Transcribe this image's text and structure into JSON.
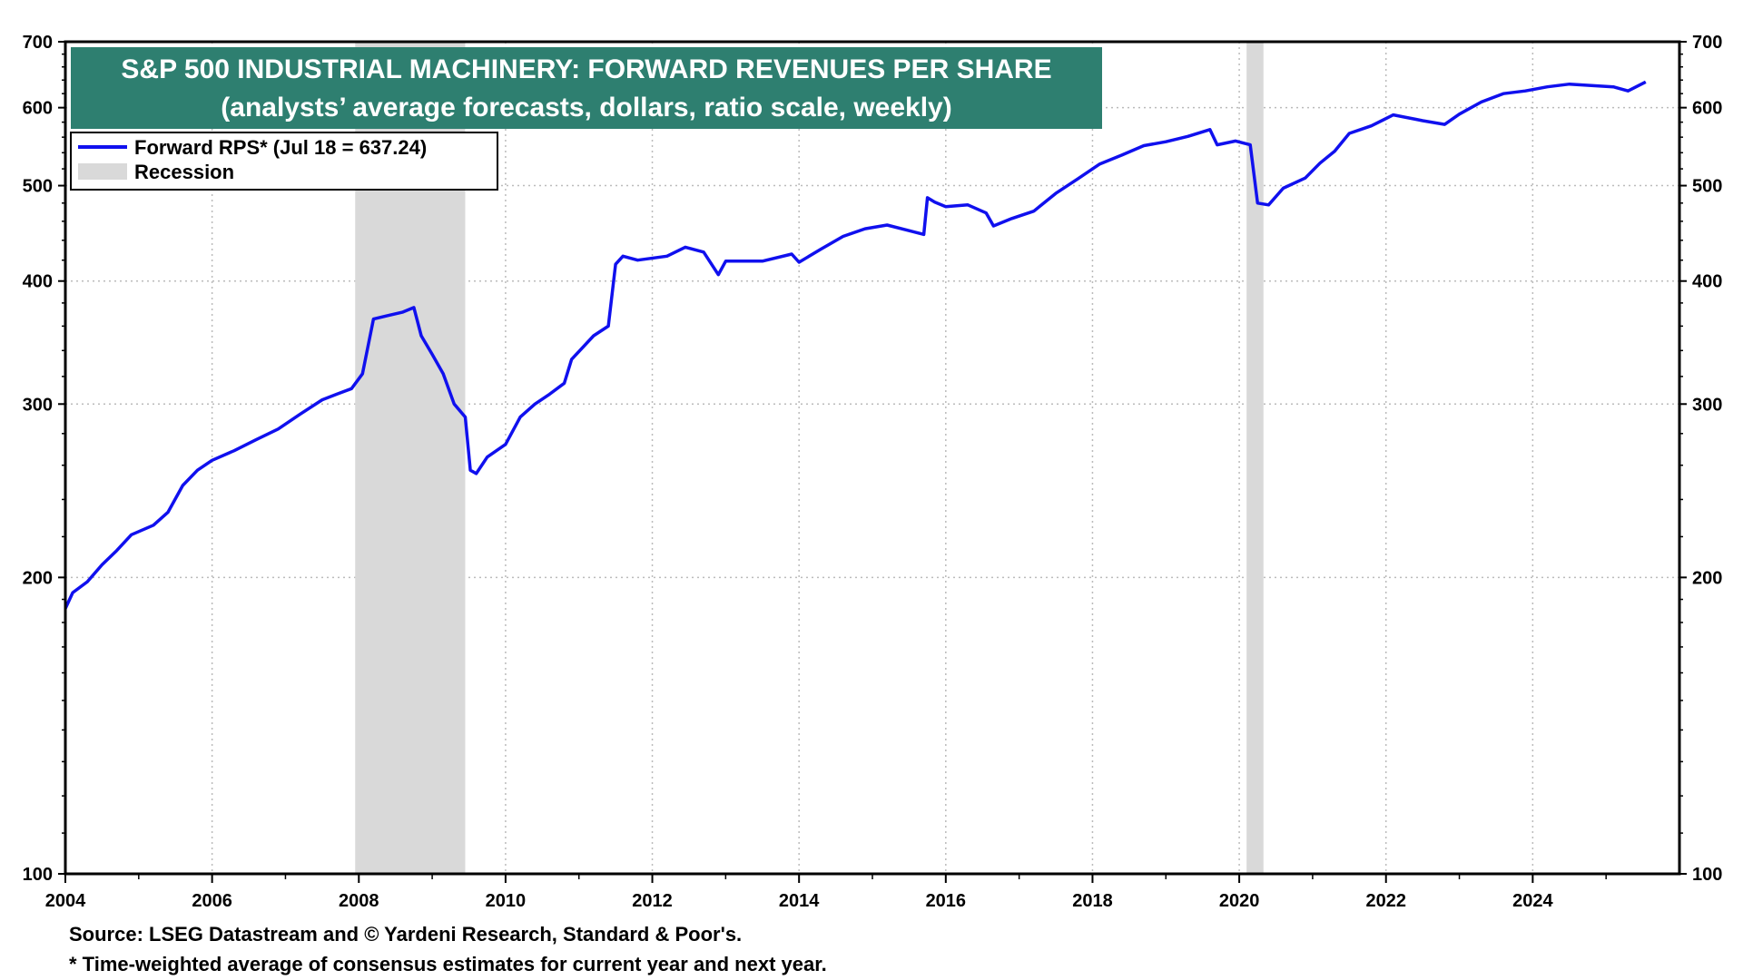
{
  "chart_data": {
    "type": "line",
    "title": "S&P 500 INDUSTRIAL MACHINERY: FORWARD REVENUES PER SHARE",
    "subtitle": "(analysts’ average forecasts, dollars, ratio scale, weekly)",
    "y_scale": "log",
    "ylim": [
      100,
      700
    ],
    "xlim": [
      2004.0,
      2026.0
    ],
    "y_ticks": [
      "100",
      "200",
      "300",
      "400",
      "500",
      "600",
      "700"
    ],
    "x_ticks": [
      "2004",
      "2006",
      "2008",
      "2010",
      "2012",
      "2014",
      "2016",
      "2018",
      "2020",
      "2022",
      "2024"
    ],
    "grid": true,
    "legend_position": "top-left",
    "colors": {
      "series": "#1010ee",
      "recession": "#d9d9d9",
      "title_bg": "#2e7f70",
      "axis": "#000000",
      "grid": "#bbbbbb"
    },
    "legend": [
      {
        "label": "Forward RPS* (Jul 18 = 637.24)",
        "kind": "line"
      },
      {
        "label": "Recession",
        "kind": "band"
      }
    ],
    "recessions": [
      {
        "start": 2007.95,
        "end": 2009.45
      },
      {
        "start": 2020.1,
        "end": 2020.33
      }
    ],
    "series": [
      {
        "x": [
          2004.0,
          2004.1,
          2004.3,
          2004.5,
          2004.7,
          2004.9,
          2005.2,
          2005.4,
          2005.6,
          2005.8,
          2006.0,
          2006.3,
          2006.6,
          2006.9,
          2007.2,
          2007.5,
          2007.7,
          2007.9,
          2008.05,
          2008.2,
          2008.4,
          2008.6,
          2008.75,
          2008.85,
          2009.0,
          2009.15,
          2009.3,
          2009.45,
          2009.52,
          2009.6,
          2009.75,
          2010.0,
          2010.2,
          2010.4,
          2010.6,
          2010.8,
          2010.9,
          2011.2,
          2011.4,
          2011.5,
          2011.6,
          2011.8,
          2012.2,
          2012.45,
          2012.7,
          2012.9,
          2013.0,
          2013.5,
          2013.9,
          2014.0,
          2014.3,
          2014.6,
          2014.9,
          2015.2,
          2015.5,
          2015.7,
          2015.75,
          2015.85,
          2016.0,
          2016.3,
          2016.55,
          2016.65,
          2016.9,
          2017.2,
          2017.5,
          2017.8,
          2018.1,
          2018.4,
          2018.7,
          2019.0,
          2019.3,
          2019.6,
          2019.7,
          2019.95,
          2020.15,
          2020.25,
          2020.4,
          2020.6,
          2020.9,
          2021.1,
          2021.3,
          2021.5,
          2021.8,
          2022.1,
          2022.4,
          2022.5,
          2022.8,
          2023.0,
          2023.3,
          2023.6,
          2023.9,
          2024.2,
          2024.5,
          2024.8,
          2025.1,
          2025.3,
          2025.54
        ],
        "values": [
          186,
          193,
          198,
          206,
          213,
          221,
          226,
          233,
          248,
          257,
          263,
          269,
          276,
          283,
          293,
          303,
          307,
          311,
          322,
          366,
          369,
          372,
          376,
          352,
          337,
          322,
          300,
          291,
          257,
          255,
          265,
          273,
          291,
          300,
          307,
          315,
          333,
          352,
          360,
          416,
          424,
          420,
          424,
          433,
          428,
          406,
          419,
          419,
          426,
          418,
          431,
          444,
          452,
          456,
          450,
          446,
          486,
          481,
          476,
          478,
          469,
          455,
          463,
          471,
          491,
          508,
          526,
          537,
          549,
          554,
          561,
          570,
          550,
          555,
          550,
          480,
          478,
          497,
          509,
          527,
          542,
          565,
          575,
          590,
          584,
          582,
          577,
          591,
          608,
          620,
          624,
          630,
          634,
          632,
          630,
          624,
          637.24
        ]
      }
    ],
    "notes": [
      "Source: LSEG Datastream and © Yardeni Research, Standard & Poor's.",
      "* Time-weighted average of consensus estimates for current year and next year."
    ]
  }
}
